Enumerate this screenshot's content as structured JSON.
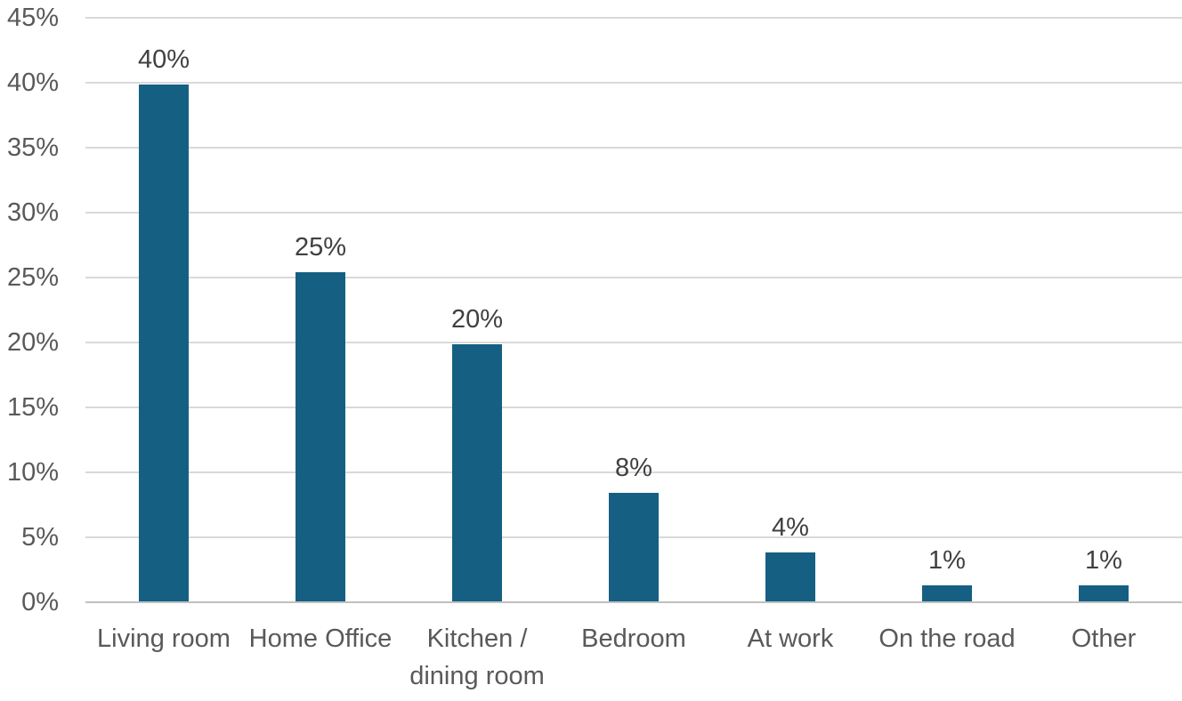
{
  "chart_data": {
    "type": "bar",
    "title": "",
    "xlabel": "",
    "ylabel": "",
    "categories": [
      "Living room",
      "Home Office",
      "Kitchen / dining room",
      "Bedroom",
      "At work",
      "On the road",
      "Other"
    ],
    "values": [
      40,
      25,
      20,
      8,
      4,
      1,
      1
    ],
    "plotted_values": [
      39.8,
      25.4,
      19.8,
      8.4,
      3.8,
      1.3,
      1.3
    ],
    "data_labels": [
      "40%",
      "25%",
      "20%",
      "8%",
      "4%",
      "1%",
      "1%"
    ],
    "y_ticks": [
      "0%",
      "5%",
      "10%",
      "15%",
      "20%",
      "25%",
      "30%",
      "35%",
      "40%",
      "45%"
    ],
    "y_tick_values": [
      0,
      5,
      10,
      15,
      20,
      25,
      30,
      35,
      40,
      45
    ],
    "ylim": [
      0,
      45
    ],
    "tick_step": 5,
    "grid": true,
    "legend_position": "none",
    "colors": {
      "bar": "#156082",
      "gridline": "#D9D9D9",
      "axis_line": "#C0C0C0",
      "tick_label": "#595959",
      "data_label": "#404040",
      "category_label": "#595959",
      "background": "#FFFFFF"
    }
  }
}
